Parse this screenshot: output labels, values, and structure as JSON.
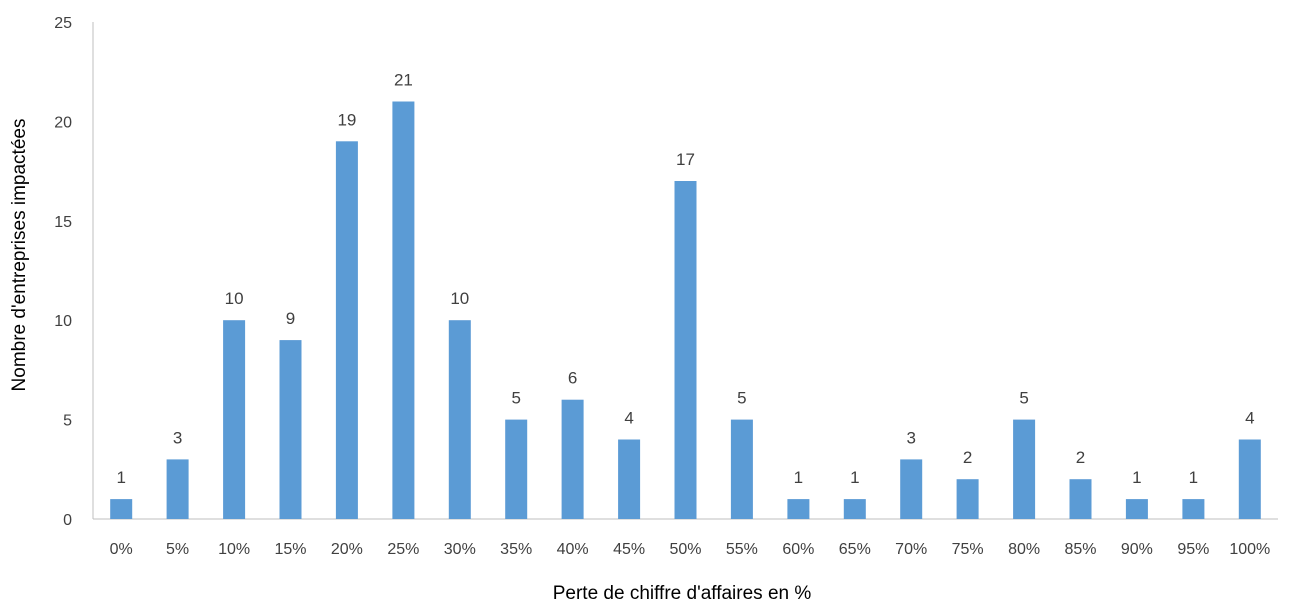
{
  "chart_data": {
    "type": "bar",
    "title": "",
    "xlabel": "Perte de chiffre d'affaires en %",
    "ylabel": "Nombre d'entreprises impactées",
    "categories": [
      "0%",
      "5%",
      "10%",
      "15%",
      "20%",
      "25%",
      "30%",
      "35%",
      "40%",
      "45%",
      "50%",
      "55%",
      "60%",
      "65%",
      "70%",
      "75%",
      "80%",
      "85%",
      "90%",
      "95%",
      "100%"
    ],
    "values": [
      1,
      3,
      10,
      9,
      19,
      21,
      10,
      5,
      6,
      4,
      17,
      5,
      1,
      1,
      3,
      2,
      5,
      2,
      1,
      1,
      4
    ],
    "ylim": [
      0,
      25
    ],
    "yticks": [
      0,
      5,
      10,
      15,
      20,
      25
    ],
    "grid": false,
    "legend": "none",
    "data_labels": true,
    "bar_color": "#5b9bd5"
  }
}
